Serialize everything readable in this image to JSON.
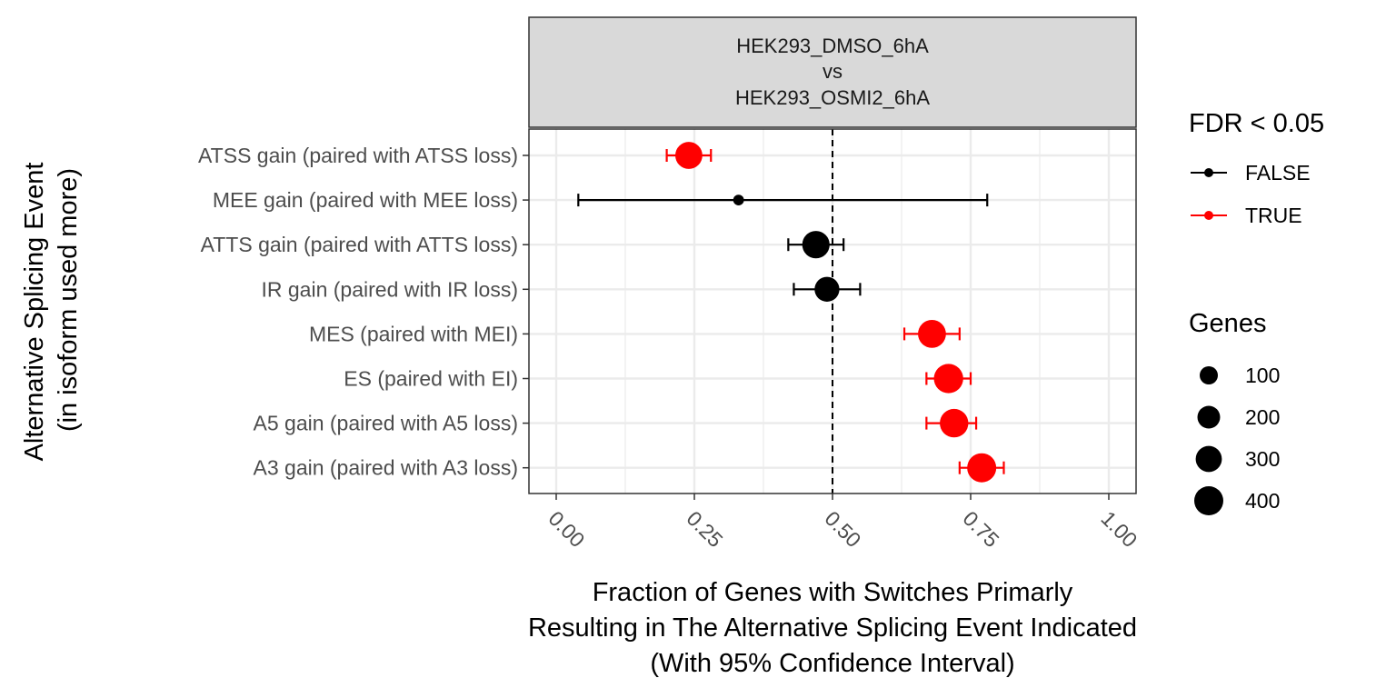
{
  "chart_data": {
    "type": "scatter",
    "facet_title": [
      "HEK293_DMSO_6hA",
      "vs",
      "HEK293_OSMI2_6hA"
    ],
    "xlabel": [
      "Fraction of Genes with Switches Primarly",
      "Resulting in The Alternative Splicing Event Indicated",
      "(With 95% Confidence Interval)"
    ],
    "ylabel": [
      "Alternative Splicing Event",
      "(in isoform used more)"
    ],
    "xlim": [
      0,
      1
    ],
    "x_ticks": [
      0,
      0.25,
      0.5,
      0.75,
      1.0
    ],
    "x_tick_labels": [
      "0.00",
      "0.25",
      "0.50",
      "0.75",
      "1.00"
    ],
    "reference_line_x": 0.5,
    "grid": true,
    "legend_position": "right",
    "colors": {
      "FALSE": "#000000",
      "TRUE": "#ff0000"
    },
    "color_legend": {
      "title": "FDR < 0.05",
      "entries": [
        "FALSE",
        "TRUE"
      ]
    },
    "size_legend": {
      "title": "Genes",
      "entries": [
        100,
        200,
        300,
        400
      ]
    },
    "categories": [
      "ATSS gain (paired with ATSS loss)",
      "MEE gain (paired with MEE loss)",
      "ATTS gain (paired with ATTS loss)",
      "IR gain (paired with IR loss)",
      "MES (paired with MEI)",
      "ES (paired with EI)",
      "A5 gain (paired with A5 loss)",
      "A3 gain (paired with A3 loss)"
    ],
    "points": [
      {
        "category": "ATSS gain (paired with ATSS loss)",
        "x": 0.24,
        "ci_low": 0.2,
        "ci_high": 0.28,
        "genes": 330,
        "fdr_sig": "TRUE"
      },
      {
        "category": "MEE gain (paired with MEE loss)",
        "x": 0.33,
        "ci_low": 0.04,
        "ci_high": 0.78,
        "genes": 10,
        "fdr_sig": "FALSE"
      },
      {
        "category": "ATTS gain (paired with ATTS loss)",
        "x": 0.47,
        "ci_low": 0.42,
        "ci_high": 0.52,
        "genes": 340,
        "fdr_sig": "FALSE"
      },
      {
        "category": "IR gain (paired with IR loss)",
        "x": 0.49,
        "ci_low": 0.43,
        "ci_high": 0.55,
        "genes": 260,
        "fdr_sig": "FALSE"
      },
      {
        "category": "MES (paired with MEI)",
        "x": 0.68,
        "ci_low": 0.63,
        "ci_high": 0.73,
        "genes": 360,
        "fdr_sig": "TRUE"
      },
      {
        "category": "ES (paired with EI)",
        "x": 0.71,
        "ci_low": 0.67,
        "ci_high": 0.75,
        "genes": 410,
        "fdr_sig": "TRUE"
      },
      {
        "category": "A5 gain (paired with A5 loss)",
        "x": 0.72,
        "ci_low": 0.67,
        "ci_high": 0.76,
        "genes": 380,
        "fdr_sig": "TRUE"
      },
      {
        "category": "A3 gain (paired with A3 loss)",
        "x": 0.77,
        "ci_low": 0.73,
        "ci_high": 0.81,
        "genes": 400,
        "fdr_sig": "TRUE"
      }
    ]
  }
}
